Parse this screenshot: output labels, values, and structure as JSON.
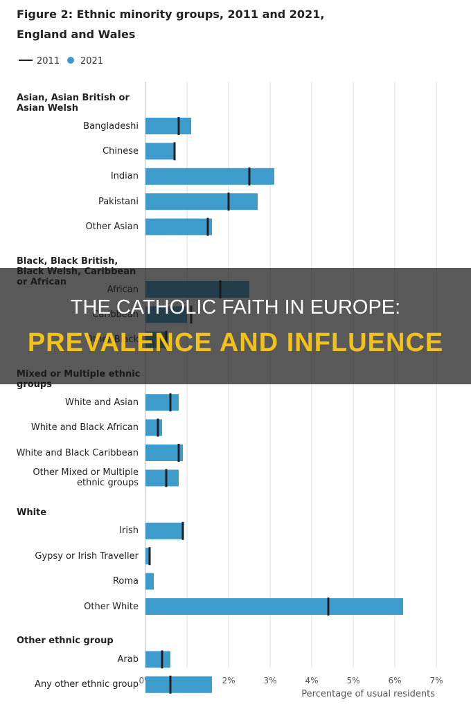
{
  "chart_data": {
    "type": "bar",
    "title": "Figure 2: Ethnic minority groups, 2011 and 2021, England and Wales",
    "x_label": "Percentage of usual residents",
    "xlim": [
      0,
      7
    ],
    "xticks": [
      {
        "value": 0,
        "label": "0%"
      },
      {
        "value": 1,
        "label": "1%"
      },
      {
        "value": 2,
        "label": "2%"
      },
      {
        "value": 3,
        "label": "3%"
      },
      {
        "value": 4,
        "label": "4%"
      },
      {
        "value": 5,
        "label": "5%"
      },
      {
        "value": 6,
        "label": "6%"
      },
      {
        "value": 7,
        "label": "7%"
      }
    ],
    "grid": true,
    "groups": [
      {
        "name": "Asian, Asian British or Asian Welsh",
        "categories": [
          "Bangladeshi",
          "Chinese",
          "Indian",
          "Pakistani",
          "Other Asian"
        ]
      },
      {
        "name": "Black, Black British, Black Welsh, Caribbean or African",
        "categories": [
          "African",
          "Caribbean",
          "Other Black"
        ]
      },
      {
        "name": "Mixed or Multiple ethnic groups",
        "categories": [
          "White and Asian",
          "White and Black African",
          "White and Black Caribbean",
          "Other Mixed or Multiple ethnic groups"
        ]
      },
      {
        "name": "White",
        "categories": [
          "Irish",
          "Gypsy or Irish Traveller",
          "Roma",
          "Other White"
        ]
      },
      {
        "name": "Other ethnic group",
        "categories": [
          "Arab",
          "Any other ethnic group"
        ]
      }
    ],
    "series": [
      {
        "name": "2011",
        "color": "#1f1f1f",
        "values": [
          0.8,
          0.7,
          2.5,
          2.0,
          1.5,
          1.8,
          1.1,
          0.5,
          0.6,
          0.3,
          0.8,
          0.5,
          0.9,
          0.1,
          null,
          4.4,
          0.4,
          0.6
        ]
      },
      {
        "name": "2021",
        "color": "#3d9ccb",
        "values": [
          1.1,
          0.7,
          3.1,
          2.7,
          1.6,
          2.5,
          1.0,
          0.5,
          0.8,
          0.4,
          0.9,
          0.8,
          0.9,
          0.1,
          0.2,
          6.2,
          0.6,
          1.6
        ]
      }
    ]
  },
  "banner": {
    "line1": "THE CATHOLIC FAITH IN EUROPE:",
    "line2": "PREVALENCE AND INFLUENCE"
  }
}
